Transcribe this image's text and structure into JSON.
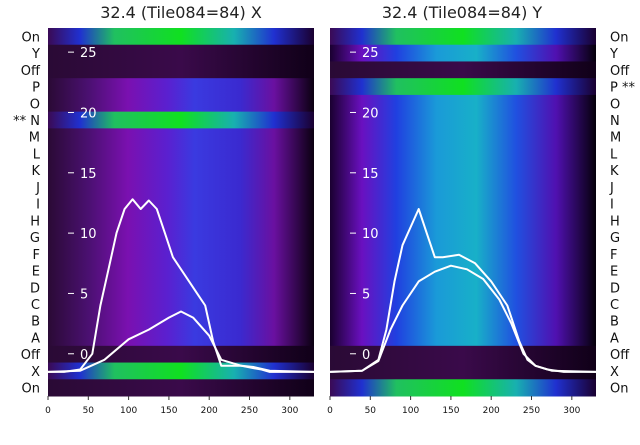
{
  "chart_data": [
    {
      "type": "heatmap",
      "title": "32.4 (Tile084=84) X",
      "xlim": [
        0,
        330
      ],
      "xticks": [
        0,
        50,
        100,
        150,
        200,
        250,
        300
      ],
      "ylim": [
        -3.5,
        27
      ],
      "yticks": [
        0,
        5,
        10,
        15,
        20,
        25
      ],
      "row_labels": [
        "On",
        "Y",
        "Off",
        "P",
        "O",
        "** N",
        "M",
        "L",
        "K",
        "J",
        "I",
        "H",
        "G",
        "F",
        "E",
        "D",
        "C",
        "B",
        "A",
        "Off",
        "X",
        "On"
      ],
      "overlay_series": [
        {
          "x": [
            0,
            20,
            40,
            55,
            65,
            75,
            85,
            95,
            105,
            115,
            125,
            135,
            145,
            155,
            165,
            175,
            185,
            195,
            205,
            215,
            240,
            255,
            265,
            275,
            300,
            330
          ],
          "y": [
            -1.5,
            -1.5,
            -1.3,
            0,
            4,
            7,
            10,
            12,
            12.8,
            12,
            12.7,
            12,
            10,
            8,
            7,
            6,
            5,
            4,
            1,
            -1,
            -1,
            -1.2,
            -1.3,
            -1.5,
            -1.5,
            -1.5
          ]
        },
        {
          "x": [
            0,
            40,
            70,
            100,
            125,
            150,
            165,
            180,
            200,
            215,
            240,
            255,
            275,
            330
          ],
          "y": [
            -1.5,
            -1.4,
            -0.5,
            1.2,
            2,
            3,
            3.5,
            3,
            1.5,
            -0.5,
            -1,
            -1.1,
            -1.4,
            -1.5
          ]
        }
      ]
    },
    {
      "type": "heatmap",
      "title": "32.4 (Tile084=84) Y",
      "xlim": [
        0,
        330
      ],
      "xticks": [
        0,
        50,
        100,
        150,
        200,
        250,
        300
      ],
      "ylim": [
        -3.5,
        27
      ],
      "yticks": [
        0,
        5,
        10,
        15,
        20,
        25
      ],
      "row_labels": [
        "On",
        "Y",
        "Off",
        "P **",
        "O",
        "N",
        "M",
        "L",
        "K",
        "J",
        "I",
        "H",
        "G",
        "F",
        "E",
        "D",
        "C",
        "B",
        "A",
        "Off",
        "X",
        "On"
      ],
      "overlay_series": [
        {
          "x": [
            0,
            40,
            60,
            70,
            80,
            90,
            100,
            110,
            120,
            125,
            130,
            140,
            160,
            180,
            200,
            220,
            235,
            245,
            255,
            270,
            290,
            330
          ],
          "y": [
            -1.5,
            -1.4,
            -0.5,
            2,
            6,
            9,
            10.5,
            12,
            10,
            9,
            8,
            8,
            8.2,
            7.5,
            6,
            4,
            1,
            -0.5,
            -1,
            -1.3,
            -1.5,
            -1.5
          ]
        },
        {
          "x": [
            0,
            40,
            60,
            75,
            90,
            110,
            130,
            150,
            170,
            190,
            210,
            225,
            240,
            255,
            275,
            330
          ],
          "y": [
            -1.5,
            -1.4,
            -0.6,
            2,
            4,
            6,
            6.8,
            7.3,
            7,
            6.2,
            4.5,
            2.5,
            0,
            -1,
            -1.4,
            -1.5
          ]
        }
      ]
    }
  ]
}
